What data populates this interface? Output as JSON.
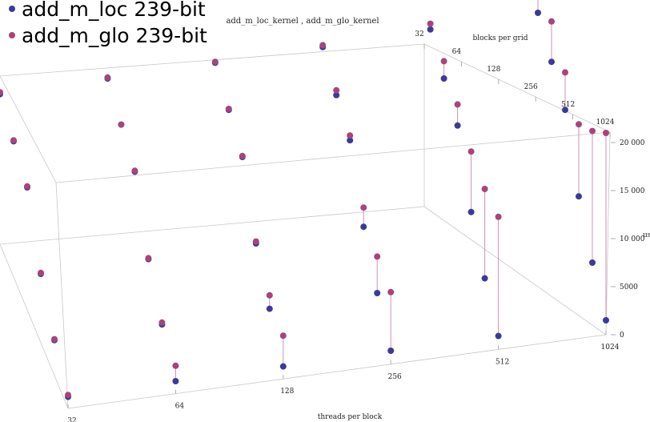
{
  "chart_data": {
    "type": "scatter",
    "title": "add_m_loc_kernel ,  add_m_glo_kernel",
    "xlabel": "threads    per    block",
    "ylabel": "blocks    per    grid",
    "zlabel": "us",
    "x_ticks": [
      "32",
      "64",
      "128",
      "256",
      "512",
      "1024"
    ],
    "y_ticks": [
      "32",
      "64",
      "128",
      "256",
      "512",
      "1024"
    ],
    "z_ticks": [
      "0",
      "5000",
      "10 000",
      "15 000",
      "20 000"
    ],
    "zlim": [
      0,
      21000
    ],
    "series": [
      {
        "name": "add_m_loc 239-bit",
        "color": "#3b3a98",
        "points": [
          {
            "x": "32",
            "y": "32",
            "z": 1200
          },
          {
            "x": "32",
            "y": "64",
            "z": 2400
          },
          {
            "x": "32",
            "y": "128",
            "z": 4600
          },
          {
            "x": "32",
            "y": "256",
            "z": 8900
          },
          {
            "x": "32",
            "y": "512",
            "z": 9000
          },
          {
            "x": "32",
            "y": "1024",
            "z": 9200
          },
          {
            "x": "64",
            "y": "32",
            "z": 1300
          },
          {
            "x": "64",
            "y": "64",
            "z": 2500
          },
          {
            "x": "64",
            "y": "128",
            "z": 4600
          },
          {
            "x": "64",
            "y": "256",
            "z": 9000
          },
          {
            "x": "64",
            "y": "512",
            "z": 9200
          },
          {
            "x": "64",
            "y": "1024",
            "z": 9300
          },
          {
            "x": "128",
            "y": "32",
            "z": 1300
          },
          {
            "x": "128",
            "y": "64",
            "z": 2600
          },
          {
            "x": "128",
            "y": "128",
            "z": 4700
          },
          {
            "x": "128",
            "y": "256",
            "z": 9000
          },
          {
            "x": "128",
            "y": "512",
            "z": 9200
          },
          {
            "x": "128",
            "y": "1024",
            "z": 9400
          },
          {
            "x": "256",
            "y": "32",
            "z": 1400
          },
          {
            "x": "256",
            "y": "64",
            "z": 2700
          },
          {
            "x": "256",
            "y": "128",
            "z": 4900
          },
          {
            "x": "256",
            "y": "256",
            "z": 9200
          },
          {
            "x": "256",
            "y": "512",
            "z": 9200
          },
          {
            "x": "256",
            "y": "1024",
            "z": 9500
          },
          {
            "x": "512",
            "y": "32",
            "z": 1400
          },
          {
            "x": "512",
            "y": "64",
            "z": 2700
          },
          {
            "x": "512",
            "y": "128",
            "z": 4900
          },
          {
            "x": "512",
            "y": "256",
            "z": 9200
          },
          {
            "x": "512",
            "y": "512",
            "z": 9400
          },
          {
            "x": "512",
            "y": "1024",
            "z": 9800
          },
          {
            "x": "1024",
            "y": "32",
            "z": 1500
          },
          {
            "x": "1024",
            "y": "64",
            "z": 2800
          },
          {
            "x": "1024",
            "y": "128",
            "z": 5000
          },
          {
            "x": "1024",
            "y": "256",
            "z": 9300
          },
          {
            "x": "1024",
            "y": "512",
            "z": 9600
          },
          {
            "x": "1024",
            "y": "1024",
            "z": 10000
          }
        ]
      },
      {
        "name": "add_m_glo 239-bit",
        "color": "#a8447a",
        "points": [
          {
            "x": "32",
            "y": "32",
            "z": 1400
          },
          {
            "x": "32",
            "y": "64",
            "z": 2500
          },
          {
            "x": "32",
            "y": "128",
            "z": 4700
          },
          {
            "x": "32",
            "y": "256",
            "z": 9000
          },
          {
            "x": "32",
            "y": "512",
            "z": 9100
          },
          {
            "x": "32",
            "y": "1024",
            "z": 9400
          },
          {
            "x": "64",
            "y": "32",
            "z": 2900
          },
          {
            "x": "64",
            "y": "64",
            "z": 2700
          },
          {
            "x": "64",
            "y": "128",
            "z": 4700
          },
          {
            "x": "64",
            "y": "256",
            "z": 9100
          },
          {
            "x": "64",
            "y": "512",
            "z": 9200
          },
          {
            "x": "64",
            "y": "1024",
            "z": 9400
          },
          {
            "x": "128",
            "y": "32",
            "z": 4500
          },
          {
            "x": "128",
            "y": "64",
            "z": 4000
          },
          {
            "x": "128",
            "y": "128",
            "z": 4900
          },
          {
            "x": "128",
            "y": "256",
            "z": 9100
          },
          {
            "x": "128",
            "y": "512",
            "z": 9300
          },
          {
            "x": "128",
            "y": "1024",
            "z": 9500
          },
          {
            "x": "256",
            "y": "32",
            "z": 7500
          },
          {
            "x": "256",
            "y": "64",
            "z": 6500
          },
          {
            "x": "256",
            "y": "128",
            "z": 6900
          },
          {
            "x": "256",
            "y": "256",
            "z": 9700
          },
          {
            "x": "256",
            "y": "512",
            "z": 9700
          },
          {
            "x": "256",
            "y": "1024",
            "z": 9700
          },
          {
            "x": "512",
            "y": "32",
            "z": 13800
          },
          {
            "x": "512",
            "y": "64",
            "z": 12000
          },
          {
            "x": "512",
            "y": "128",
            "z": 11200
          },
          {
            "x": "512",
            "y": "256",
            "z": 11400
          },
          {
            "x": "512",
            "y": "512",
            "z": 11200
          },
          {
            "x": "512",
            "y": "1024",
            "z": 10400
          },
          {
            "x": "1024",
            "y": "32",
            "z": 21000
          },
          {
            "x": "1024",
            "y": "64",
            "z": 16500
          },
          {
            "x": "1024",
            "y": "128",
            "z": 12500
          },
          {
            "x": "1024",
            "y": "256",
            "z": 13200
          },
          {
            "x": "1024",
            "y": "512",
            "z": 13800
          },
          {
            "x": "1024",
            "y": "1024",
            "z": 13900
          }
        ]
      }
    ],
    "legend": [
      "add_m_loc 239-bit",
      "add_m_glo 239-bit"
    ],
    "legend_position": "top-left",
    "grid": false
  }
}
